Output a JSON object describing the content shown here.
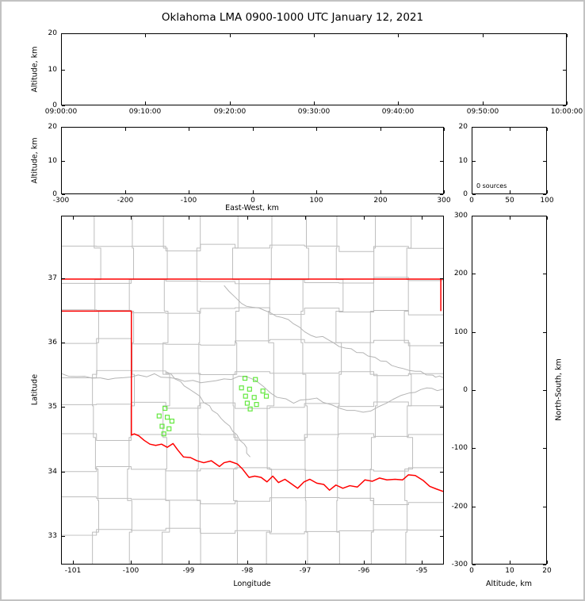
{
  "title": "Oklahoma LMA 0900-1000 UTC January 12, 2021",
  "colors": {
    "frame": "#c2c2c2",
    "axis": "#000000",
    "county_line": "#bdbdbd",
    "river_line": "#b4b4b4",
    "state_border": "#ff0000",
    "source_marker": "#63e83e",
    "background": "#ffffff"
  },
  "chart_data": [
    {
      "id": "time_altitude",
      "type": "scatter",
      "description": "VHF source altitude vs time (empty - no sources)",
      "xlabel": "",
      "ylabel": "Altitude, km",
      "xtick_labels": [
        "09:00:00",
        "09:10:00",
        "09:20:00",
        "09:30:00",
        "09:40:00",
        "09:50:00",
        "10:00:00"
      ],
      "yticks": [
        0,
        10,
        20
      ],
      "ylim": [
        0,
        20
      ],
      "points": []
    },
    {
      "id": "ew_altitude",
      "type": "scatter",
      "description": "Altitude vs east-west distance (empty - no sources)",
      "xlabel": "East-West, km",
      "ylabel": "Altitude, km",
      "xticks": [
        -300,
        -200,
        -100,
        0,
        100,
        200,
        300
      ],
      "xlim": [
        -300,
        300
      ],
      "yticks": [
        0,
        10,
        20
      ],
      "ylim": [
        0,
        20
      ],
      "points": []
    },
    {
      "id": "alt_histogram",
      "type": "bar",
      "description": "Altitude histogram of sources (empty)",
      "annotation": "0 sources",
      "xticks": [
        0,
        50,
        100
      ],
      "xlim": [
        0,
        100
      ],
      "yticks": [
        0,
        10,
        20
      ],
      "ylim": [
        0,
        20
      ],
      "values": []
    },
    {
      "id": "plan_view",
      "type": "scatter",
      "description": "Plan view map of Oklahoma with LMA station locations (green squares), county lines (gray) and state border (red)",
      "xlabel": "Longitude",
      "ylabel": "Latitude",
      "xticks": [
        -101,
        -100,
        -99,
        -98,
        -97,
        -96,
        -95
      ],
      "xlim": [
        -101.2,
        -94.62
      ],
      "yticks": [
        33,
        34,
        35,
        36,
        37
      ],
      "ylim": [
        32.55,
        37.98
      ],
      "sources_lonlat": [
        [
          -98.04,
          35.45
        ],
        [
          -97.86,
          35.43
        ],
        [
          -98.1,
          35.3
        ],
        [
          -97.96,
          35.28
        ],
        [
          -97.73,
          35.25
        ],
        [
          -98.03,
          35.17
        ],
        [
          -97.88,
          35.15
        ],
        [
          -97.67,
          35.17
        ],
        [
          -98.0,
          35.06
        ],
        [
          -97.84,
          35.04
        ],
        [
          -97.95,
          34.97
        ],
        [
          -99.42,
          34.98
        ],
        [
          -99.52,
          34.86
        ],
        [
          -99.38,
          34.84
        ],
        [
          -99.3,
          34.78
        ],
        [
          -99.47,
          34.7
        ],
        [
          -99.35,
          34.66
        ],
        [
          -99.44,
          34.58
        ]
      ],
      "state_border": [
        [
          [
            -101.2,
            37.0
          ],
          [
            -94.62,
            37.0
          ]
        ],
        [
          [
            -94.66,
            37.0
          ],
          [
            -94.66,
            36.5
          ]
        ],
        [
          [
            -101.2,
            36.5
          ],
          [
            -100.0,
            36.5
          ],
          [
            -100.0,
            34.56
          ],
          [
            -99.95,
            34.58
          ],
          [
            -99.87,
            34.55
          ],
          [
            -99.78,
            34.48
          ],
          [
            -99.68,
            34.42
          ],
          [
            -99.58,
            34.4
          ],
          [
            -99.48,
            34.42
          ],
          [
            -99.38,
            34.37
          ],
          [
            -99.28,
            34.43
          ],
          [
            -99.2,
            34.33
          ],
          [
            -99.1,
            34.22
          ],
          [
            -98.98,
            34.21
          ],
          [
            -98.87,
            34.16
          ],
          [
            -98.75,
            34.13
          ],
          [
            -98.62,
            34.16
          ],
          [
            -98.48,
            34.07
          ],
          [
            -98.4,
            34.13
          ],
          [
            -98.3,
            34.15
          ],
          [
            -98.17,
            34.11
          ],
          [
            -98.08,
            34.03
          ],
          [
            -97.97,
            33.9
          ],
          [
            -97.87,
            33.92
          ],
          [
            -97.76,
            33.9
          ],
          [
            -97.66,
            33.83
          ],
          [
            -97.56,
            33.92
          ],
          [
            -97.46,
            33.82
          ],
          [
            -97.35,
            33.87
          ],
          [
            -97.24,
            33.8
          ],
          [
            -97.13,
            33.73
          ],
          [
            -97.02,
            33.83
          ],
          [
            -96.92,
            33.87
          ],
          [
            -96.8,
            33.81
          ],
          [
            -96.68,
            33.79
          ],
          [
            -96.58,
            33.7
          ],
          [
            -96.47,
            33.78
          ],
          [
            -96.35,
            33.73
          ],
          [
            -96.23,
            33.77
          ],
          [
            -96.1,
            33.75
          ],
          [
            -95.97,
            33.86
          ],
          [
            -95.84,
            33.84
          ],
          [
            -95.72,
            33.89
          ],
          [
            -95.59,
            33.86
          ],
          [
            -95.45,
            33.87
          ],
          [
            -95.32,
            33.86
          ],
          [
            -95.22,
            33.94
          ],
          [
            -95.1,
            33.93
          ],
          [
            -94.96,
            33.85
          ],
          [
            -94.85,
            33.76
          ],
          [
            -94.74,
            33.72
          ],
          [
            -94.62,
            33.68
          ]
        ]
      ],
      "rivers": [
        [
          [
            -101.2,
            35.52
          ],
          [
            -100.8,
            35.48
          ],
          [
            -100.4,
            35.43
          ],
          [
            -100.0,
            35.47
          ],
          [
            -99.6,
            35.52
          ],
          [
            -99.2,
            35.44
          ],
          [
            -98.8,
            35.38
          ],
          [
            -98.4,
            35.44
          ],
          [
            -98.0,
            35.47
          ],
          [
            -97.6,
            35.22
          ],
          [
            -97.2,
            35.06
          ],
          [
            -96.8,
            35.14
          ],
          [
            -96.4,
            34.98
          ],
          [
            -96.0,
            34.92
          ],
          [
            -95.6,
            35.06
          ],
          [
            -95.2,
            35.22
          ],
          [
            -94.9,
            35.3
          ],
          [
            -94.62,
            35.28
          ]
        ],
        [
          [
            -98.4,
            36.9
          ],
          [
            -98.1,
            36.62
          ],
          [
            -97.8,
            36.55
          ],
          [
            -97.5,
            36.42
          ],
          [
            -97.2,
            36.3
          ],
          [
            -96.9,
            36.12
          ],
          [
            -96.6,
            36.05
          ],
          [
            -96.3,
            35.92
          ],
          [
            -96.0,
            35.85
          ],
          [
            -95.7,
            35.72
          ],
          [
            -95.4,
            35.62
          ],
          [
            -95.1,
            35.56
          ],
          [
            -94.8,
            35.5
          ],
          [
            -94.62,
            35.46
          ]
        ],
        [
          [
            -99.4,
            35.55
          ],
          [
            -99.15,
            35.4
          ],
          [
            -98.9,
            35.22
          ],
          [
            -98.65,
            35.02
          ],
          [
            -98.45,
            34.82
          ],
          [
            -98.25,
            34.62
          ],
          [
            -98.05,
            34.42
          ],
          [
            -97.95,
            34.22
          ]
        ]
      ]
    },
    {
      "id": "ns_altitude",
      "type": "scatter",
      "description": "North-south distance vs altitude (empty - no sources)",
      "xlabel": "Altitude, km",
      "ylabel": "North-South, km",
      "xticks": [
        0,
        10,
        20
      ],
      "xlim": [
        0,
        20
      ],
      "yticks": [
        300,
        200,
        100,
        0,
        -100,
        -200,
        -300
      ],
      "ylim": [
        -300,
        300
      ],
      "points": []
    }
  ]
}
